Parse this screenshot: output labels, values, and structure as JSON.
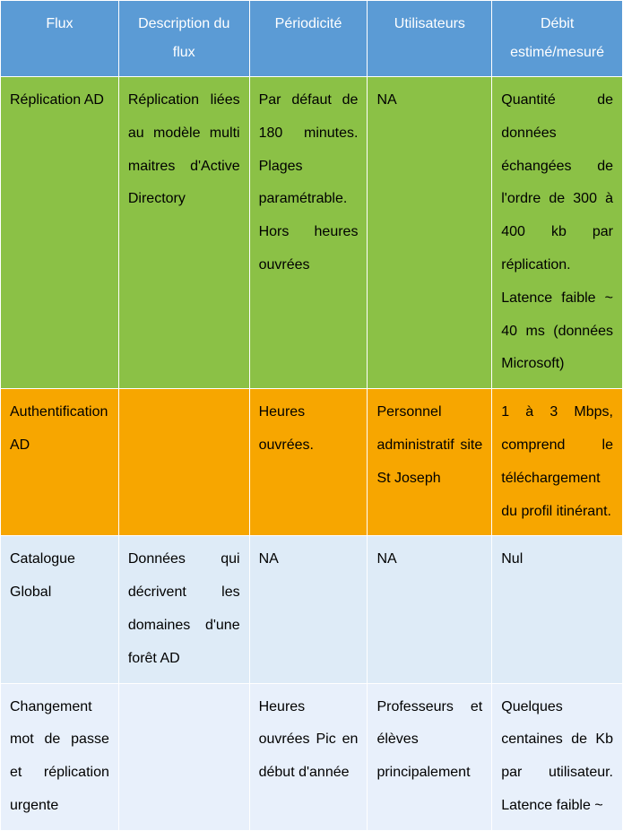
{
  "table": {
    "columns": [
      "Flux",
      "Description du flux",
      "Périodicité",
      "Utilisateurs",
      "Débit estimé/mesuré"
    ],
    "rows": [
      {
        "row_color": "#8bc146",
        "cells": [
          "Réplication AD",
          "Réplication liées au modèle multi maitres d'Active Directory",
          "Par défaut de 180 minutes. Plages paramétrable. Hors heures ouvrées",
          "NA",
          "Quantité de données échangées de l'ordre de 300 à 400 kb par réplication. Latence faible ~ 40 ms (données Microsoft)"
        ]
      },
      {
        "row_color": "#f7a600",
        "cells": [
          "Authentification AD",
          "",
          "Heures ouvrées.",
          "Personnel administratif site St Joseph",
          "1 à 3 Mbps, comprend le téléchargement du profil itinérant."
        ]
      },
      {
        "row_color": "#deebf7",
        "cells": [
          "Catalogue Global",
          "Données qui décrivent les domaines d'une forêt AD",
          "NA",
          "NA",
          "Nul"
        ]
      },
      {
        "row_color": "#e8f0fb",
        "cells": [
          "Changement mot de passe et réplication urgente",
          "",
          "Heures ouvrées\nPic en début d'année",
          "Professeurs et élèves principalement",
          "Quelques centaines de Kb par utilisateur. Latence faible ~"
        ]
      }
    ],
    "header_bg": "#5b9bd5",
    "header_text_color": "#ffffff",
    "body_text_color": "#000000",
    "border_color": "#ffffff",
    "font_family": "Segoe UI"
  }
}
